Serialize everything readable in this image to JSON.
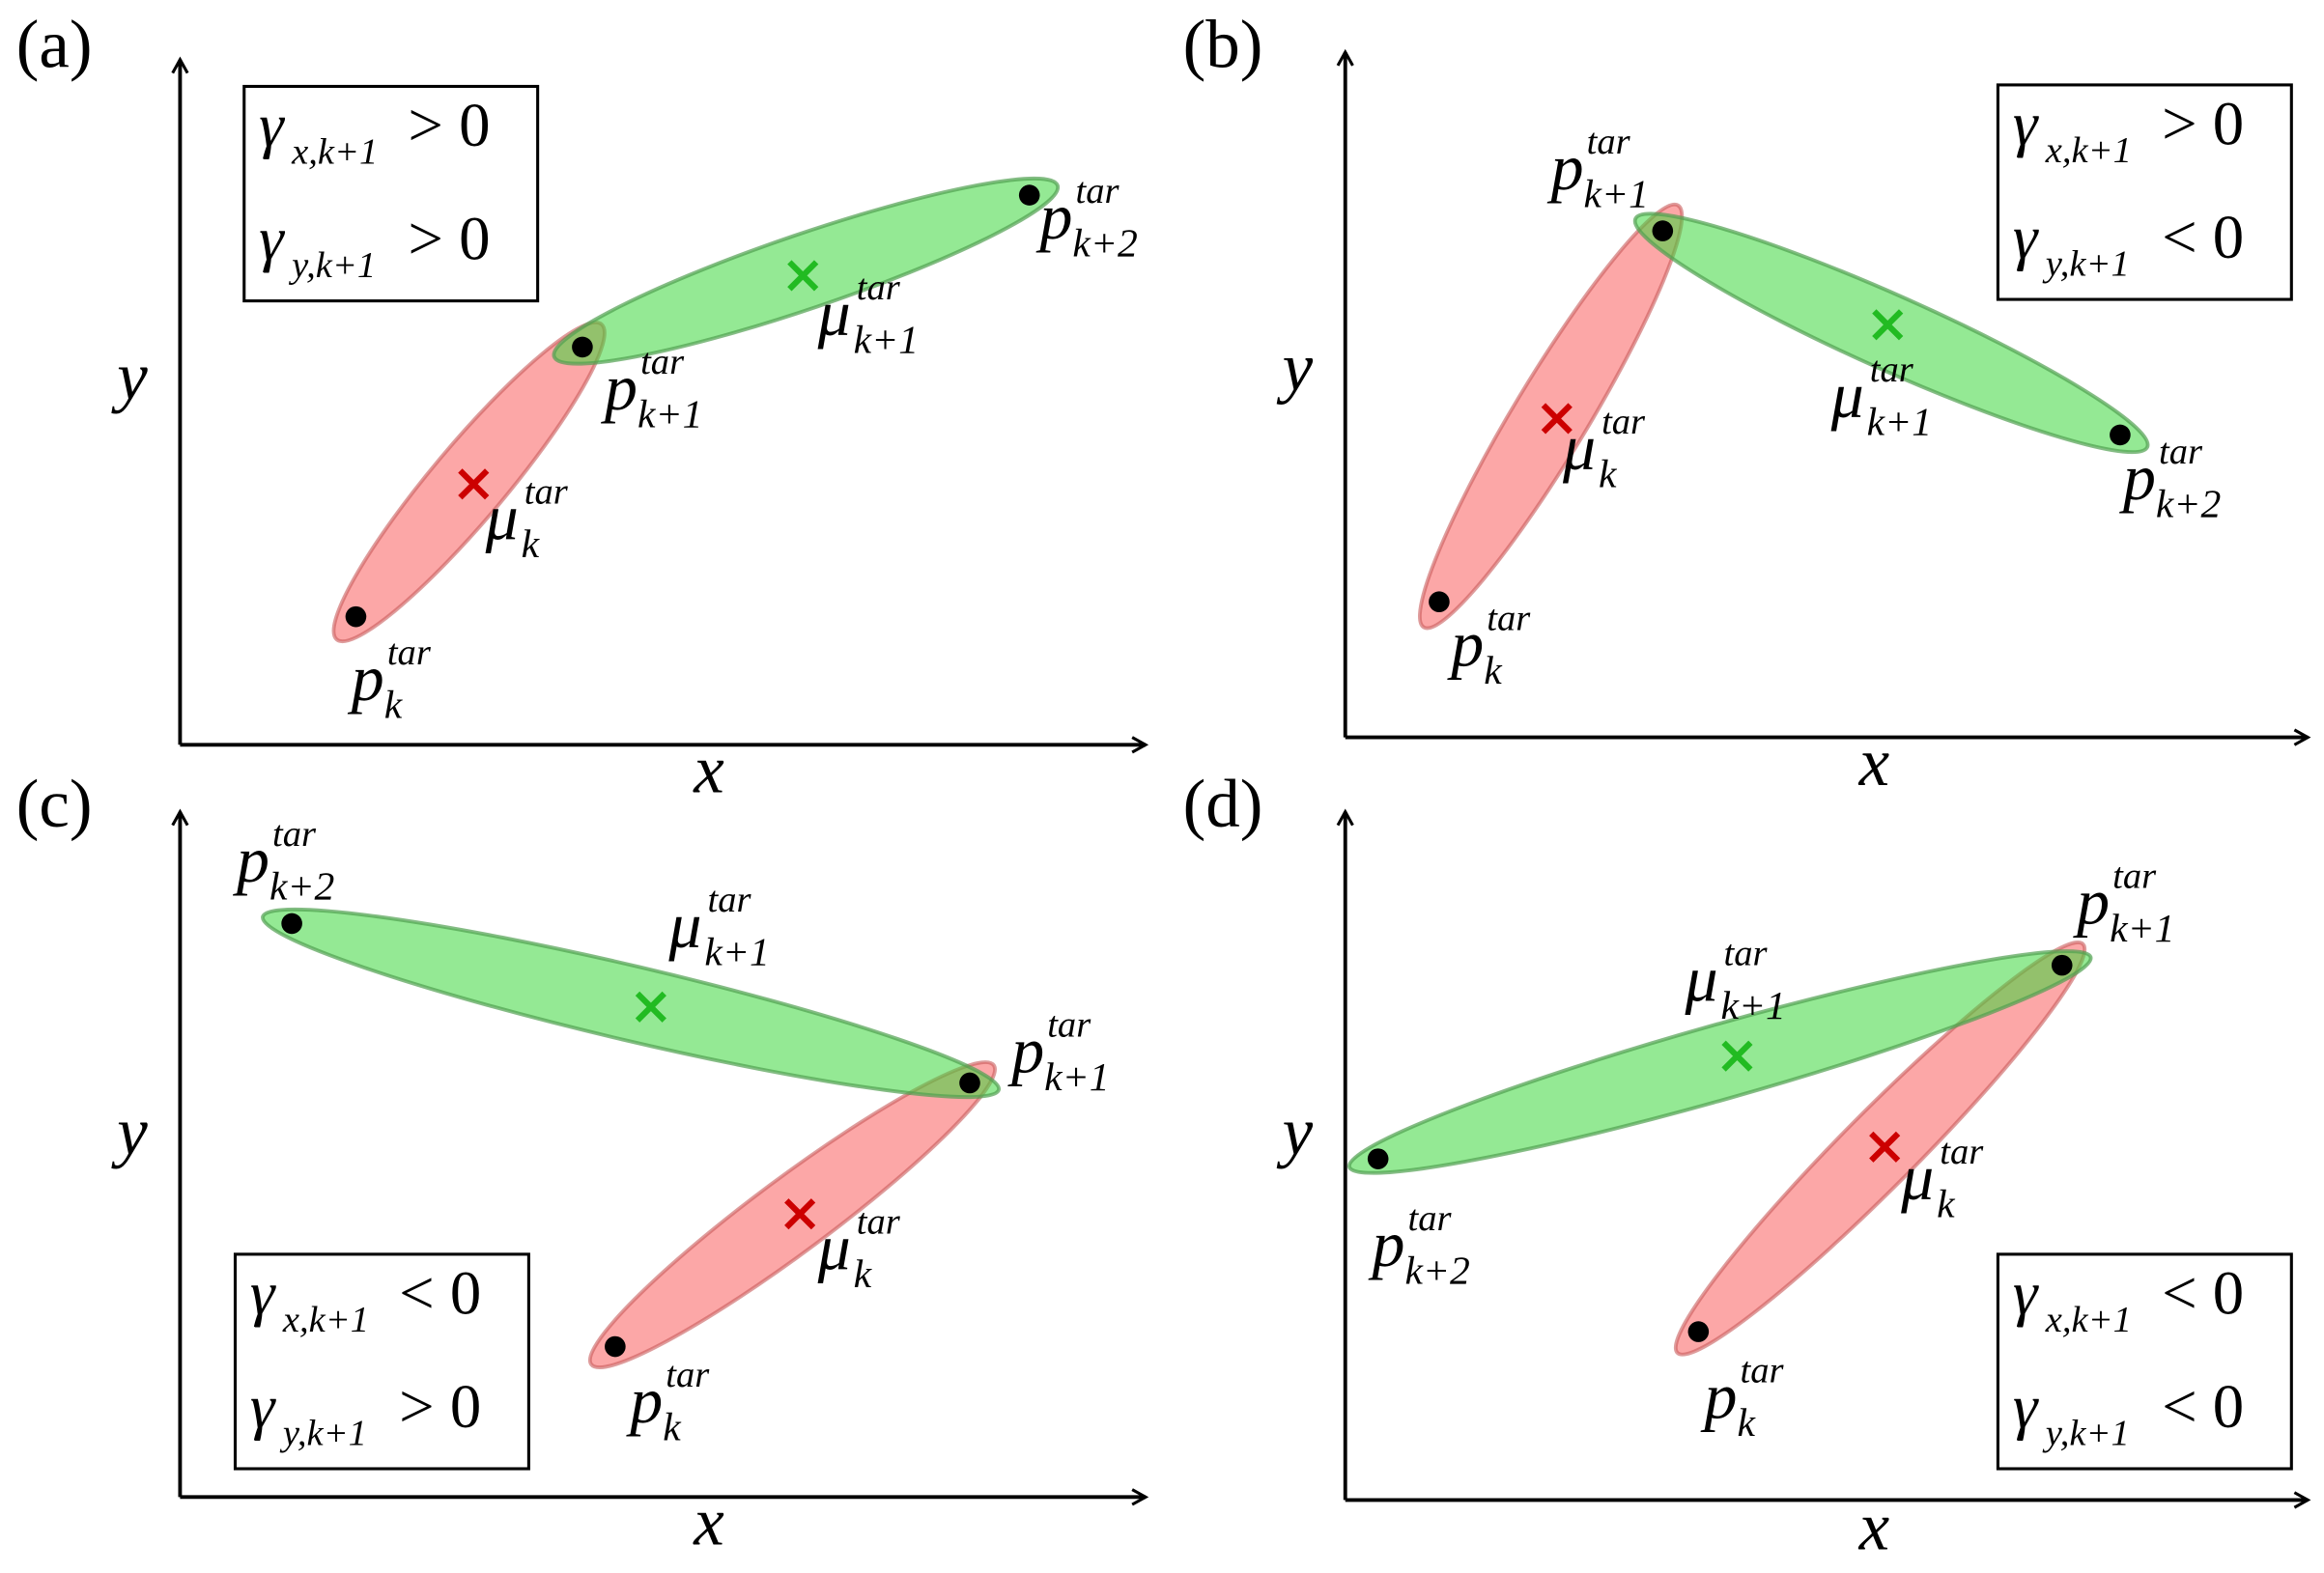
{
  "panels": [
    {
      "label": "(a)",
      "x_axis": "x",
      "y_axis": "y",
      "points": [
        {
          "base": "p",
          "sup": "tar",
          "sub": "k"
        },
        {
          "base": "p",
          "sup": "tar",
          "sub": "k+1"
        },
        {
          "base": "p",
          "sup": "tar",
          "sub": "k+2"
        }
      ],
      "means": [
        {
          "base": "μ",
          "sup": "tar",
          "sub": "k"
        },
        {
          "base": "μ",
          "sup": "tar",
          "sub": "k+1"
        }
      ],
      "conditions": [
        {
          "symbol": "γ",
          "sub": "x,k+1",
          "relation": "> 0"
        },
        {
          "symbol": "γ",
          "sub": "y,k+1",
          "relation": "> 0"
        }
      ]
    },
    {
      "label": "(b)",
      "x_axis": "x",
      "y_axis": "y",
      "points": [
        {
          "base": "p",
          "sup": "tar",
          "sub": "k"
        },
        {
          "base": "p",
          "sup": "tar",
          "sub": "k+1"
        },
        {
          "base": "p",
          "sup": "tar",
          "sub": "k+2"
        }
      ],
      "means": [
        {
          "base": "μ",
          "sup": "tar",
          "sub": "k"
        },
        {
          "base": "μ",
          "sup": "tar",
          "sub": "k+1"
        }
      ],
      "conditions": [
        {
          "symbol": "γ",
          "sub": "x,k+1",
          "relation": "> 0"
        },
        {
          "symbol": "γ",
          "sub": "y,k+1",
          "relation": "< 0"
        }
      ]
    },
    {
      "label": "(c)",
      "x_axis": "x",
      "y_axis": "y",
      "points": [
        {
          "base": "p",
          "sup": "tar",
          "sub": "k"
        },
        {
          "base": "p",
          "sup": "tar",
          "sub": "k+1"
        },
        {
          "base": "p",
          "sup": "tar",
          "sub": "k+2"
        }
      ],
      "means": [
        {
          "base": "μ",
          "sup": "tar",
          "sub": "k"
        },
        {
          "base": "μ",
          "sup": "tar",
          "sub": "k+1"
        }
      ],
      "conditions": [
        {
          "symbol": "γ",
          "sub": "x,k+1",
          "relation": "< 0"
        },
        {
          "symbol": "γ",
          "sub": "y,k+1",
          "relation": "> 0"
        }
      ]
    },
    {
      "label": "(d)",
      "x_axis": "x",
      "y_axis": "y",
      "points": [
        {
          "base": "p",
          "sup": "tar",
          "sub": "k"
        },
        {
          "base": "p",
          "sup": "tar",
          "sub": "k+1"
        },
        {
          "base": "p",
          "sup": "tar",
          "sub": "k+2"
        }
      ],
      "means": [
        {
          "base": "μ",
          "sup": "tar",
          "sub": "k"
        },
        {
          "base": "μ",
          "sup": "tar",
          "sub": "k+1"
        }
      ],
      "conditions": [
        {
          "symbol": "γ",
          "sub": "x,k+1",
          "relation": "< 0"
        },
        {
          "symbol": "γ",
          "sub": "y,k+1",
          "relation": "< 0"
        }
      ]
    }
  ]
}
